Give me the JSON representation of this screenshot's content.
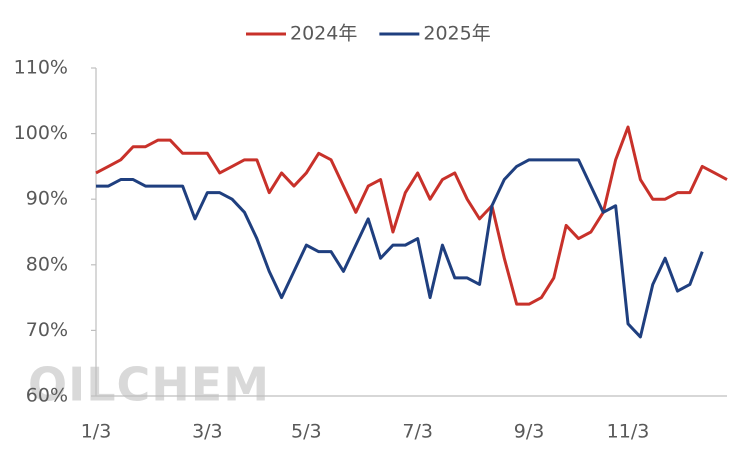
{
  "chart_data": {
    "type": "line",
    "watermark": "OILCHEM",
    "categories": [
      "1/3",
      null,
      null,
      null,
      null,
      null,
      null,
      null,
      null,
      "3/3",
      null,
      null,
      null,
      null,
      null,
      null,
      null,
      "5/3",
      null,
      null,
      null,
      null,
      null,
      null,
      null,
      null,
      "7/3",
      null,
      null,
      null,
      null,
      null,
      null,
      null,
      null,
      "9/3",
      null,
      null,
      null,
      null,
      null,
      null,
      null,
      "11/3",
      null,
      null,
      null,
      null,
      null,
      null,
      null,
      null
    ],
    "series": [
      {
        "name": "2024年",
        "color": "#c8312a",
        "values": [
          94,
          95,
          96,
          98,
          98,
          99,
          99,
          97,
          97,
          97,
          94,
          95,
          96,
          96,
          91,
          94,
          92,
          94,
          97,
          96,
          92,
          88,
          92,
          93,
          85,
          91,
          94,
          90,
          93,
          94,
          90,
          87,
          89,
          81,
          74,
          74,
          75,
          78,
          86,
          84,
          85,
          88,
          96,
          101,
          93,
          90,
          90,
          91,
          91,
          95,
          94,
          93
        ]
      },
      {
        "name": "2025年",
        "color": "#1f3f7f",
        "values": [
          92,
          92,
          93,
          93,
          92,
          92,
          92,
          92,
          87,
          91,
          91,
          90,
          88,
          84,
          79,
          75,
          79,
          83,
          82,
          82,
          79,
          83,
          87,
          81,
          83,
          83,
          84,
          75,
          83,
          78,
          78,
          77,
          89,
          93,
          95,
          96,
          96,
          96,
          96,
          96,
          92,
          88,
          89,
          71,
          69,
          77,
          81,
          76,
          77,
          82,
          null,
          null
        ]
      }
    ],
    "ylim": [
      60,
      110
    ],
    "yticks": [
      {
        "value": 60,
        "label": "60%"
      },
      {
        "value": 70,
        "label": "70%"
      },
      {
        "value": 80,
        "label": "80%"
      },
      {
        "value": 90,
        "label": "90%"
      },
      {
        "value": 100,
        "label": "100%"
      },
      {
        "value": 110,
        "label": "110%"
      }
    ],
    "grid": false,
    "legend": "top"
  }
}
